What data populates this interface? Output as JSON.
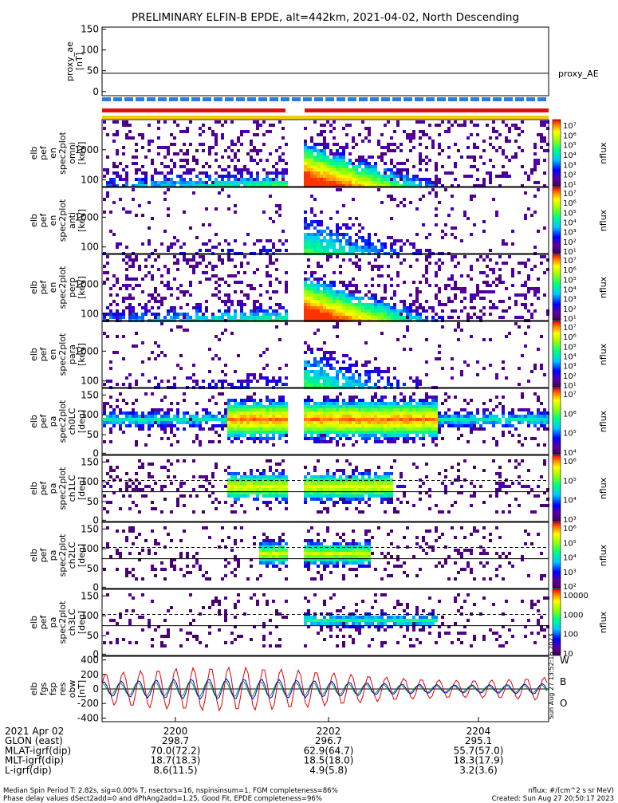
{
  "title": "PRELIMINARY ELFIN-B EPDE, alt=442km, 2021-04-02, North Descending",
  "chart_data": {
    "type": "spectrogram",
    "panels": [
      {
        "ylabel": [
          "proxy_ae",
          "[nT]"
        ],
        "ylim": [
          -10,
          155
        ],
        "ticks": [
          "150",
          "100",
          "50",
          "0"
        ],
        "series_name": "proxy_AE",
        "line_value": 44
      },
      {
        "ylabel": [
          "elb",
          "pef",
          "en",
          "spec2plot",
          "omni",
          "[keV]"
        ],
        "ticks": [
          "1000",
          "100"
        ],
        "zlabel": "nflux"
      },
      {
        "ylabel": [
          "elb",
          "pef",
          "en",
          "spec2plot",
          "anti",
          "[keV]"
        ],
        "ticks": [
          "1000",
          "100"
        ],
        "zlabel": "nflux"
      },
      {
        "ylabel": [
          "elb",
          "pef",
          "en",
          "spec2plot",
          "perp",
          "[keV]"
        ],
        "ticks": [
          "1000",
          "100"
        ],
        "zlabel": "nflux"
      },
      {
        "ylabel": [
          "elb",
          "pef",
          "en",
          "spec2plot",
          "para",
          "[keV]"
        ],
        "ticks": [
          "1000",
          "100"
        ],
        "zlabel": "nflux"
      },
      {
        "ylabel": [
          "elb",
          "pef",
          "pa",
          "spec2plot",
          "ch0LC",
          "[deg]"
        ],
        "ticks": [
          "150",
          "100",
          "50",
          "0"
        ],
        "zlabel": "nflux"
      },
      {
        "ylabel": [
          "elb",
          "pef",
          "pa",
          "spec2plot",
          "ch1LC",
          "[deg]"
        ],
        "ticks": [
          "150",
          "100",
          "50",
          "0"
        ],
        "zlabel": "nflux"
      },
      {
        "ylabel": [
          "elb",
          "pef",
          "pa",
          "spec2plot",
          "ch2LC",
          "[deg]"
        ],
        "ticks": [
          "150",
          "100",
          "50",
          "0"
        ],
        "zlabel": "nflux"
      },
      {
        "ylabel": [
          "elb",
          "pef",
          "pa",
          "spec2plot",
          "ch3LC",
          "[deg]"
        ],
        "ticks": [
          "150",
          "100",
          "50",
          "0"
        ],
        "zlabel": "nflux"
      },
      {
        "ylabel": [
          "elb",
          "fgs",
          "fsp",
          "res",
          "obw",
          "[nT]"
        ],
        "ylim": [
          -450,
          450
        ],
        "ticks": [
          "400",
          "200",
          "0",
          "-200",
          "-400"
        ],
        "legend": [
          "W",
          "B",
          "O"
        ]
      }
    ],
    "colorbar_labels": [
      [
        "10⁷",
        "10⁶",
        "10⁵",
        "10⁴",
        "10³",
        "10²",
        "10¹"
      ],
      [
        "10⁷",
        "10⁶",
        "10⁵",
        "10⁴",
        "10³",
        "10²",
        "10¹"
      ],
      [
        "10⁷",
        "10⁶",
        "10⁵",
        "10⁴",
        "10³",
        "10²",
        "10¹"
      ],
      [
        "10⁷",
        "10⁶",
        "10⁵",
        "10⁴",
        "10³",
        "10²",
        "10¹"
      ],
      [
        "10⁷",
        "10⁶",
        "10⁵",
        "10⁴"
      ],
      [
        "10⁶",
        "10⁵",
        "10⁴",
        "10³"
      ],
      [
        "10⁶",
        "10⁵",
        "10⁴",
        "10³",
        "10²"
      ],
      [
        "10000",
        "1000",
        "100",
        "10"
      ]
    ],
    "stamp": "Sun Aug 27 13:52:16 2023",
    "x_row_labels": [
      "2021 Apr 02",
      "GLON (east)",
      "MLAT-igrf(dip)",
      "MLT-igrf(dip)",
      "L-igrf(dip)"
    ],
    "x_columns": [
      {
        "time": "2200",
        "glon": "298.7",
        "mlat": "70.0(72.2)",
        "mlt": "18.7(18.3)",
        "l": "8.6(11.5)"
      },
      {
        "time": "2202",
        "glon": "296.7",
        "mlat": "62.9(64.7)",
        "mlt": "18.5(18.0)",
        "l": "4.9(5.8)"
      },
      {
        "time": "2204",
        "glon": "295.1",
        "mlat": "55.7(57.0)",
        "mlt": "18.3(17.9)",
        "l": "3.2(3.6)"
      }
    ]
  },
  "footer": {
    "line1": "Median Spin Period T: 2.82s, sig=0.00% T, nsectors=16, nspinsinsum=1, FGM completeness=86%",
    "line2": "Phase delay values dSect2add=0 and dPhAng2add=1.25, Good Fit, EPDE completeness=96%",
    "units": "nflux: #/(cm^2 s sr MeV)",
    "created": "Created: Sun Aug 27 20:50:17 2023"
  },
  "colors": {
    "red": "#e00000",
    "green": "#00b000",
    "blue": "#0000e0",
    "bar_blue": "#2a7de0",
    "bar_red": "#e01010",
    "bar_yellow": "#f0d000"
  }
}
